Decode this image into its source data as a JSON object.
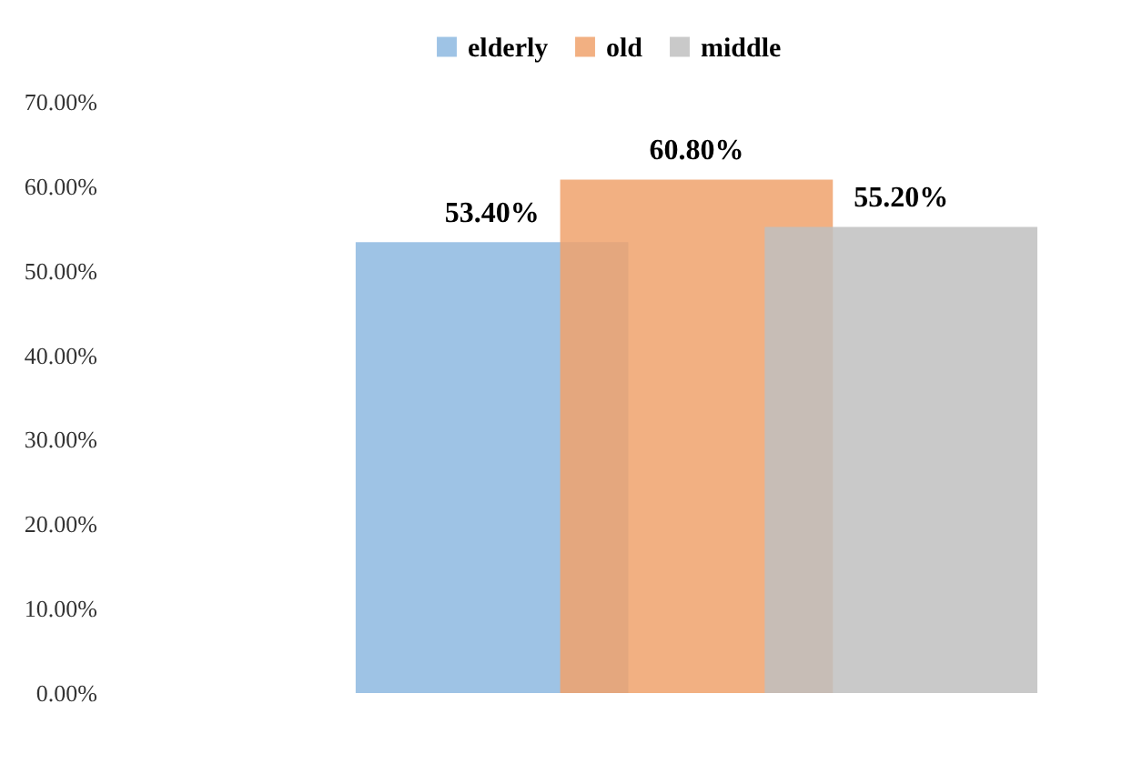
{
  "chart_data": {
    "type": "bar",
    "categories": [
      null
    ],
    "series": [
      {
        "name": "elderly",
        "color": "#8db8e0",
        "values": [
          53.4
        ],
        "value_labels": [
          "53.40%"
        ]
      },
      {
        "name": "old",
        "color": "#f0a26c",
        "values": [
          60.8
        ],
        "value_labels": [
          "60.80%"
        ]
      },
      {
        "name": "middle",
        "color": "#bfbfbf",
        "values": [
          55.2
        ],
        "value_labels": [
          "55.20%"
        ]
      }
    ],
    "ylim": [
      0,
      70
    ],
    "yticks": [
      {
        "value": 0,
        "label": "0.00%"
      },
      {
        "value": 10,
        "label": "10.00%"
      },
      {
        "value": 20,
        "label": "20.00%"
      },
      {
        "value": 30,
        "label": "30.00%"
      },
      {
        "value": 40,
        "label": "40.00%"
      },
      {
        "value": 50,
        "label": "50.00%"
      },
      {
        "value": 60,
        "label": "60.00%"
      },
      {
        "value": 70,
        "label": "70.00%"
      }
    ],
    "grid": false,
    "legend": "top"
  }
}
